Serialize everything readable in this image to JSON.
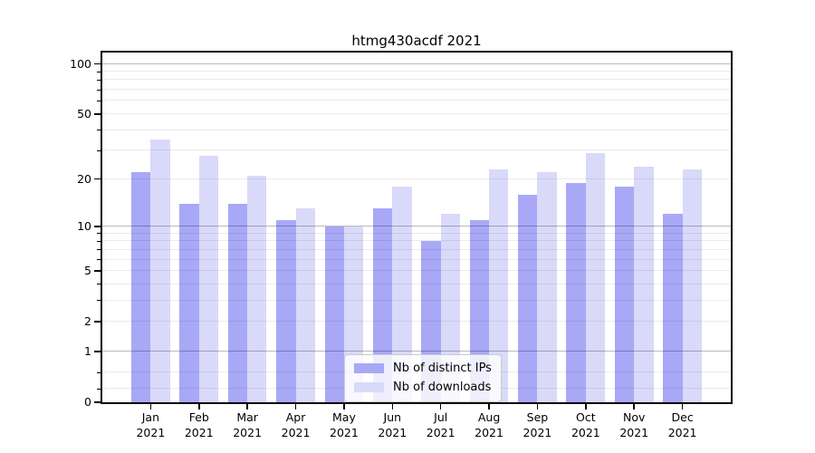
{
  "chart_data": {
    "type": "bar",
    "title": "htmg430acdf 2021",
    "categories": [
      "Jan",
      "Feb",
      "Mar",
      "Apr",
      "May",
      "Jun",
      "Jul",
      "Aug",
      "Sep",
      "Oct",
      "Nov",
      "Dec"
    ],
    "category_year": "2021",
    "series": [
      {
        "name": "Nb of distinct IPs",
        "color": "#a8a8f6",
        "values": [
          22,
          14,
          14,
          11,
          10,
          13,
          8,
          11,
          16,
          19,
          18,
          12
        ]
      },
      {
        "name": "Nb of downloads",
        "color": "#d9d9fa",
        "values": [
          35,
          28,
          21,
          13,
          10,
          18,
          12,
          23,
          22,
          29,
          24,
          23
        ]
      }
    ],
    "xlabel": "",
    "ylabel": "",
    "yscale": "log1p",
    "ylim": [
      0,
      117
    ],
    "y_tick_labels": [
      100,
      50,
      20,
      10,
      5,
      2,
      1,
      0
    ],
    "y_major_gridlines": [
      1,
      10,
      100
    ],
    "y_minor_gridlines": [
      0.2,
      0.5,
      2,
      3,
      4,
      5,
      6,
      7,
      8,
      9,
      20,
      30,
      40,
      50,
      60,
      70,
      80,
      90
    ],
    "grid": true,
    "legend_position": "lower center",
    "bar_group_width": 0.8,
    "background_color": "#ffffff",
    "major_grid_color": "#b3b3b3",
    "minor_grid_color": "#ececec"
  }
}
